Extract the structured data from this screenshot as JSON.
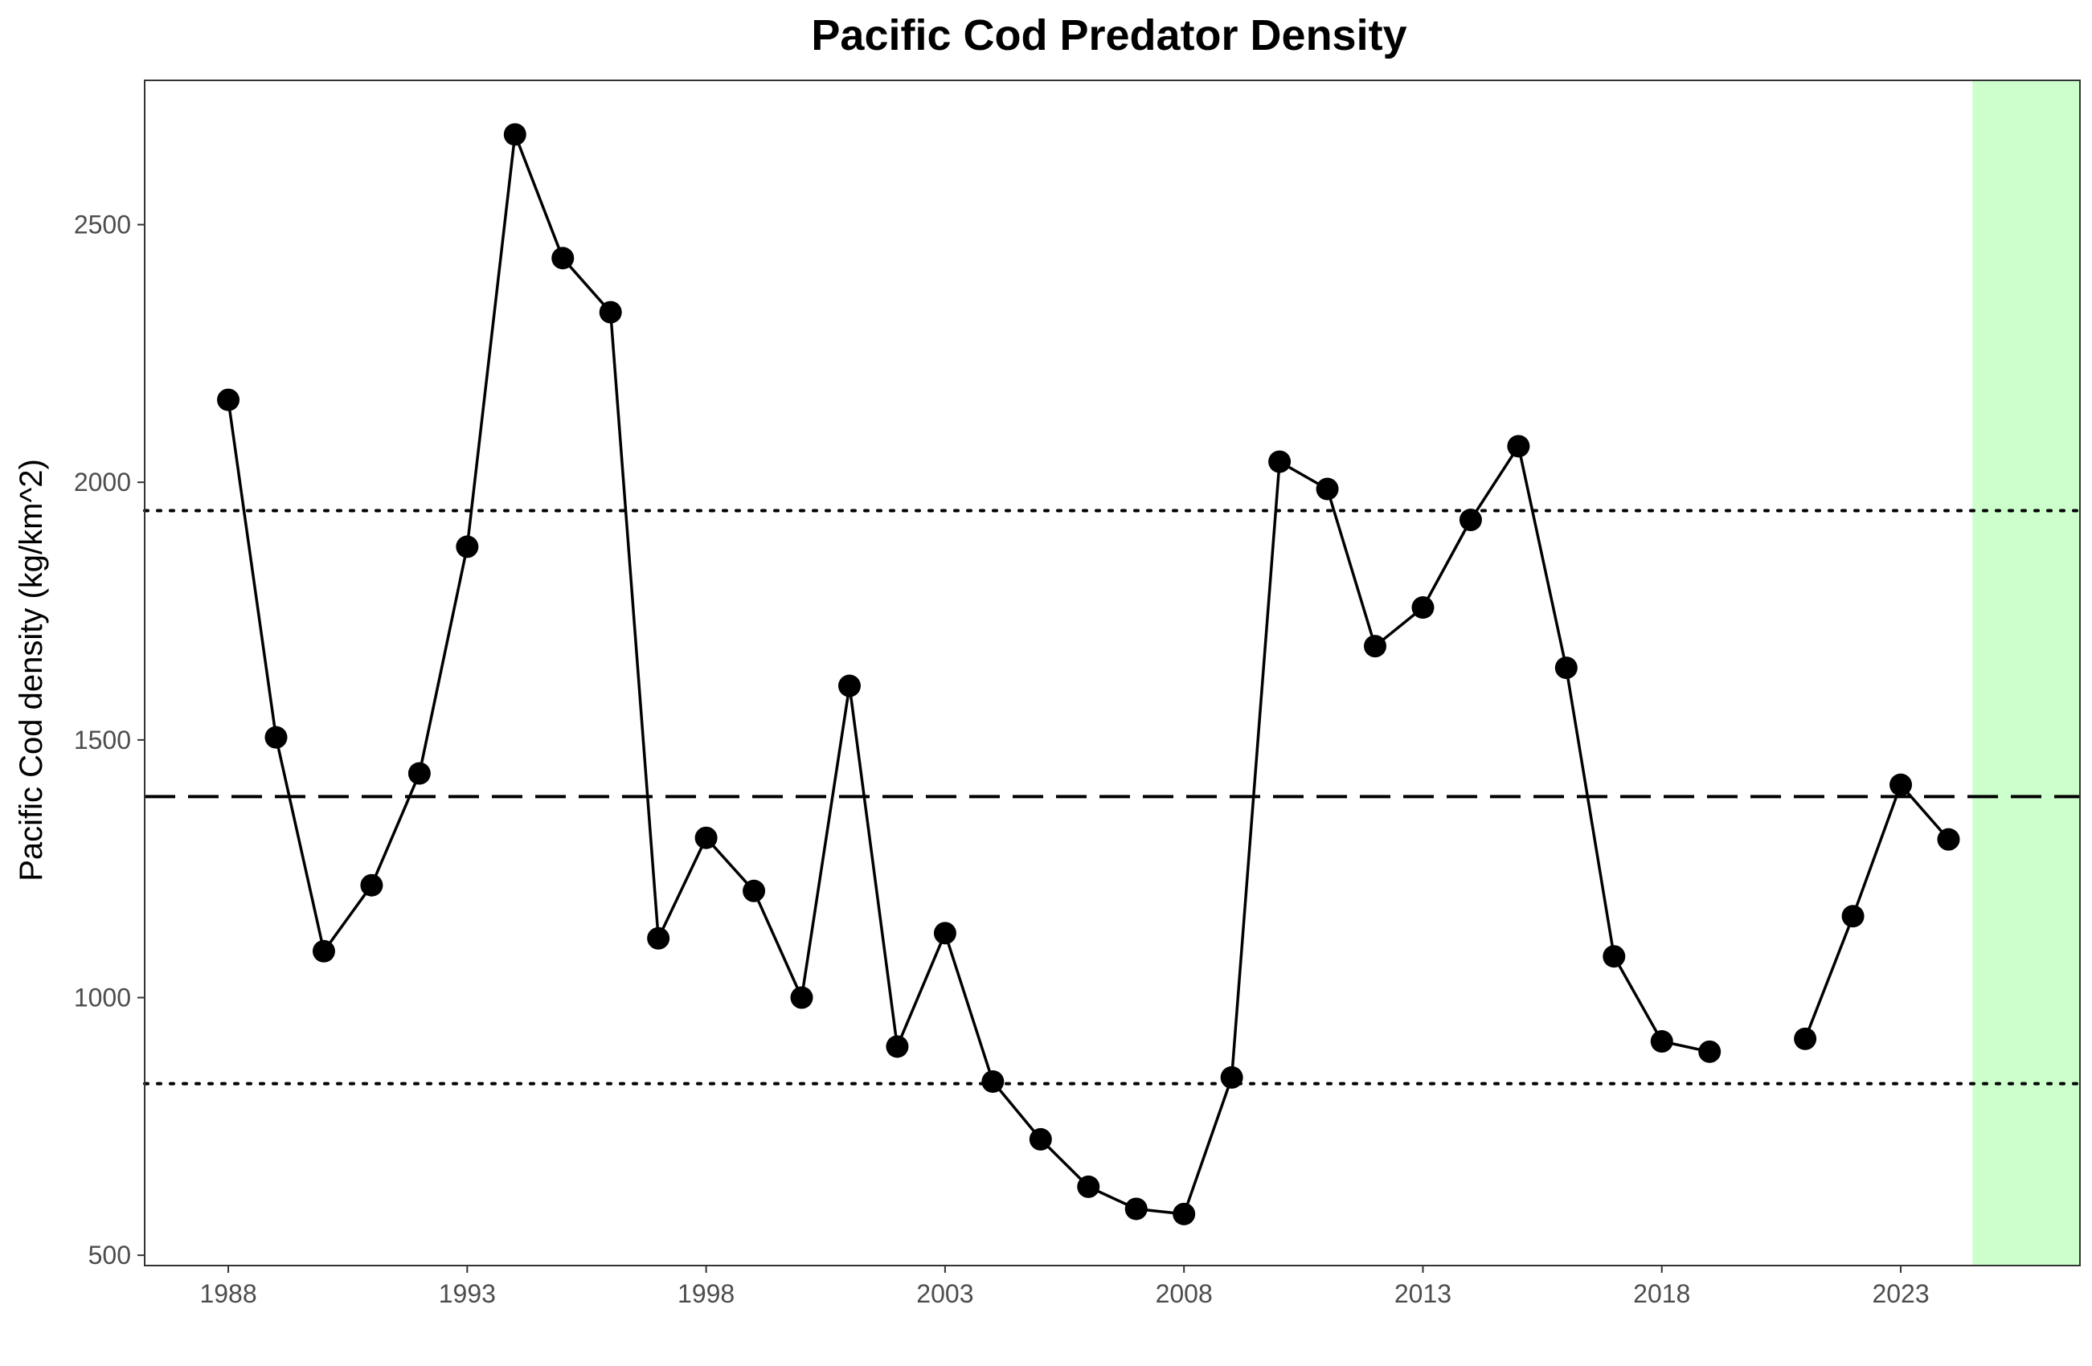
{
  "chart_data": {
    "type": "line",
    "title": "Pacific Cod Predator Density",
    "xlabel": "",
    "ylabel": "Pacific Cod density (kg/km^2)",
    "xlim": [
      1986.25,
      2026.75
    ],
    "ylim": [
      480,
      2780
    ],
    "x_ticks": [
      1988,
      1993,
      1998,
      2003,
      2008,
      2013,
      2018,
      2023
    ],
    "y_ticks": [
      500,
      1000,
      1500,
      2000,
      2500
    ],
    "grid": false,
    "series": [
      {
        "color": "#000000",
        "points": [
          {
            "x": 1988,
            "y": 2160
          },
          {
            "x": 1989,
            "y": 1505
          },
          {
            "x": 1990,
            "y": 1090
          },
          {
            "x": 1991,
            "y": 1218
          },
          {
            "x": 1992,
            "y": 1435
          },
          {
            "x": 1993,
            "y": 1875
          },
          {
            "x": 1994,
            "y": 2675
          },
          {
            "x": 1995,
            "y": 2435
          },
          {
            "x": 1996,
            "y": 2330
          },
          {
            "x": 1997,
            "y": 1115
          },
          {
            "x": 1998,
            "y": 1310
          },
          {
            "x": 1999,
            "y": 1207
          },
          {
            "x": 2000,
            "y": 1000
          },
          {
            "x": 2001,
            "y": 1605
          },
          {
            "x": 2002,
            "y": 905
          },
          {
            "x": 2003,
            "y": 1125
          },
          {
            "x": 2004,
            "y": 837
          },
          {
            "x": 2005,
            "y": 725
          },
          {
            "x": 2006,
            "y": 633
          },
          {
            "x": 2007,
            "y": 590
          },
          {
            "x": 2008,
            "y": 580
          },
          {
            "x": 2009,
            "y": 845
          },
          {
            "x": 2010,
            "y": 2040
          },
          {
            "x": 2011,
            "y": 1987
          },
          {
            "x": 2012,
            "y": 1682
          },
          {
            "x": 2013,
            "y": 1757
          },
          {
            "x": 2014,
            "y": 1927
          },
          {
            "x": 2015,
            "y": 2070
          },
          {
            "x": 2016,
            "y": 1640
          },
          {
            "x": 2017,
            "y": 1080
          },
          {
            "x": 2018,
            "y": 915
          },
          {
            "x": 2019,
            "y": 895
          },
          {
            "x": 2021,
            "y": 920
          },
          {
            "x": 2022,
            "y": 1158
          },
          {
            "x": 2023,
            "y": 1413
          },
          {
            "x": 2024,
            "y": 1307
          }
        ]
      }
    ],
    "reference_lines": {
      "mean": 1390,
      "upper_sd": 1945,
      "lower_sd": 833
    },
    "shaded_region": {
      "x_from": 2024.5,
      "x_to": 2026.75,
      "color": "#ccffcc"
    }
  }
}
